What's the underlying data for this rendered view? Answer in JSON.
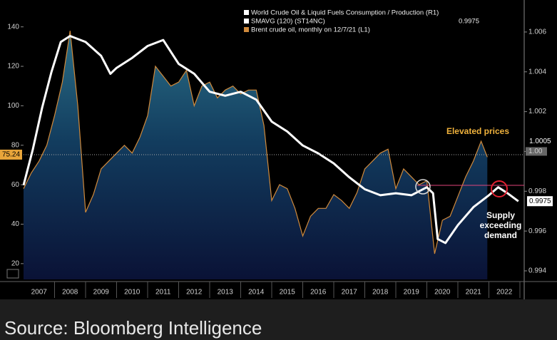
{
  "chart_data": {
    "type": "line",
    "categories": [
      "2007",
      "2008",
      "2009",
      "2010",
      "2011",
      "2012",
      "2013",
      "2014",
      "2015",
      "2016",
      "2017",
      "2018",
      "2019",
      "2020",
      "2021",
      "2022"
    ],
    "xlim": [
      2007,
      2023
    ],
    "ylim": [
      12,
      150
    ],
    "yticks": [
      20,
      40,
      60,
      80,
      100,
      120,
      140
    ],
    "y2lim": [
      0.99357,
      1.00725
    ],
    "y2ticks": [
      0.994,
      0.996,
      0.998,
      {
        "value": 1,
        "label": "1.00"
      },
      1.002,
      1.004,
      1.006
    ],
    "series": [
      {
        "name": "World Crude Oil & Liquid Fuels Consumption / Production (R1)",
        "color": "#ffffff",
        "axis": "y2",
        "legend_only": true
      },
      {
        "name": "SMAVG (120)  (ST14NC)",
        "color": "#ffffff",
        "axis": "y2",
        "legend_value": 0.9975,
        "x": [
          2007.0,
          2007.3,
          2007.6,
          2007.9,
          2008.2,
          2008.5,
          2009.0,
          2009.5,
          2009.8,
          2010.0,
          2010.5,
          2011.0,
          2011.5,
          2012.0,
          2012.5,
          2013.0,
          2013.5,
          2014.0,
          2014.5,
          2015.0,
          2015.5,
          2016.0,
          2016.5,
          2017.0,
          2017.5,
          2018.0,
          2018.5,
          2019.0,
          2019.5,
          2020.0,
          2020.2,
          2020.35,
          2020.6,
          2021.0,
          2021.5,
          2022.0,
          2022.3,
          2022.6,
          2022.95
        ],
        "values": [
          0.9983,
          1.0001,
          1.0022,
          1.004,
          1.0055,
          1.0058,
          1.0055,
          1.0048,
          1.0039,
          1.0042,
          1.0047,
          1.0053,
          1.0056,
          1.0044,
          1.0039,
          1.003,
          1.0028,
          1.003,
          1.0026,
          1.0015,
          1.001,
          1.0003,
          0.9999,
          0.9994,
          0.9987,
          0.9981,
          0.9978,
          0.9979,
          0.9978,
          0.9982,
          0.9979,
          0.9956,
          0.9954,
          0.9963,
          0.9972,
          0.9978,
          0.9982,
          0.9979,
          0.9975
        ]
      },
      {
        "name": "Brent crude oil, monthly  on 12/7/21 (L1)",
        "color": "#d08a3c",
        "axis": "y",
        "x": [
          2007.0,
          2007.25,
          2007.5,
          2007.75,
          2008.0,
          2008.25,
          2008.5,
          2008.75,
          2009.0,
          2009.25,
          2009.5,
          2009.75,
          2010.0,
          2010.25,
          2010.5,
          2010.75,
          2011.0,
          2011.25,
          2011.5,
          2011.75,
          2012.0,
          2012.25,
          2012.5,
          2012.75,
          2013.0,
          2013.25,
          2013.5,
          2013.75,
          2014.0,
          2014.25,
          2014.5,
          2014.75,
          2015.0,
          2015.25,
          2015.5,
          2015.75,
          2016.0,
          2016.25,
          2016.5,
          2016.75,
          2017.0,
          2017.25,
          2017.5,
          2017.75,
          2018.0,
          2018.25,
          2018.5,
          2018.75,
          2019.0,
          2019.25,
          2019.5,
          2019.75,
          2020.0,
          2020.25,
          2020.5,
          2020.75,
          2021.0,
          2021.25,
          2021.5,
          2021.75,
          2021.95
        ],
        "values": [
          58,
          66,
          72,
          80,
          95,
          112,
          138,
          100,
          46,
          55,
          68,
          72,
          76,
          80,
          76,
          84,
          95,
          120,
          115,
          110,
          112,
          118,
          100,
          110,
          112,
          104,
          108,
          110,
          106,
          108,
          108,
          90,
          52,
          60,
          58,
          48,
          34,
          44,
          48,
          48,
          55,
          52,
          48,
          56,
          68,
          72,
          76,
          78,
          58,
          68,
          64,
          60,
          62,
          25,
          42,
          44,
          54,
          64,
          72,
          82,
          74
        ]
      }
    ],
    "value_markers": [
      {
        "axis": "y",
        "value": 75.24,
        "color": "#e8a53a"
      },
      {
        "axis": "y2",
        "value": 1.0005,
        "color": "#000000"
      },
      {
        "axis": "y2",
        "value": 0.9975,
        "color": "#ffffff"
      }
    ],
    "annotations": [
      {
        "lines": [
          "Elevated prices"
        ],
        "color": "#f0b23c"
      },
      {
        "lines": [
          "Supply",
          "exceeding",
          "demand"
        ],
        "color": "#ffffff"
      }
    ],
    "source": "Source: Bloomberg Intelligence"
  }
}
